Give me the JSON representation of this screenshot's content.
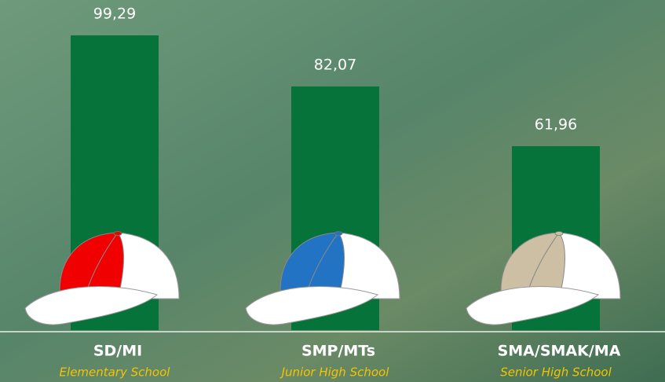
{
  "chart_data": {
    "type": "bar",
    "categories": [
      "SD/MI",
      "SMP/MTs",
      "SMA/SMAK/MA"
    ],
    "subtitles": [
      "Elementary School",
      "Junior High School",
      "Senior High School"
    ],
    "values": [
      99.29,
      82.07,
      61.96
    ],
    "value_labels": [
      "99,29",
      "82,07",
      "61,96"
    ],
    "color": "#05733a"
  }
}
